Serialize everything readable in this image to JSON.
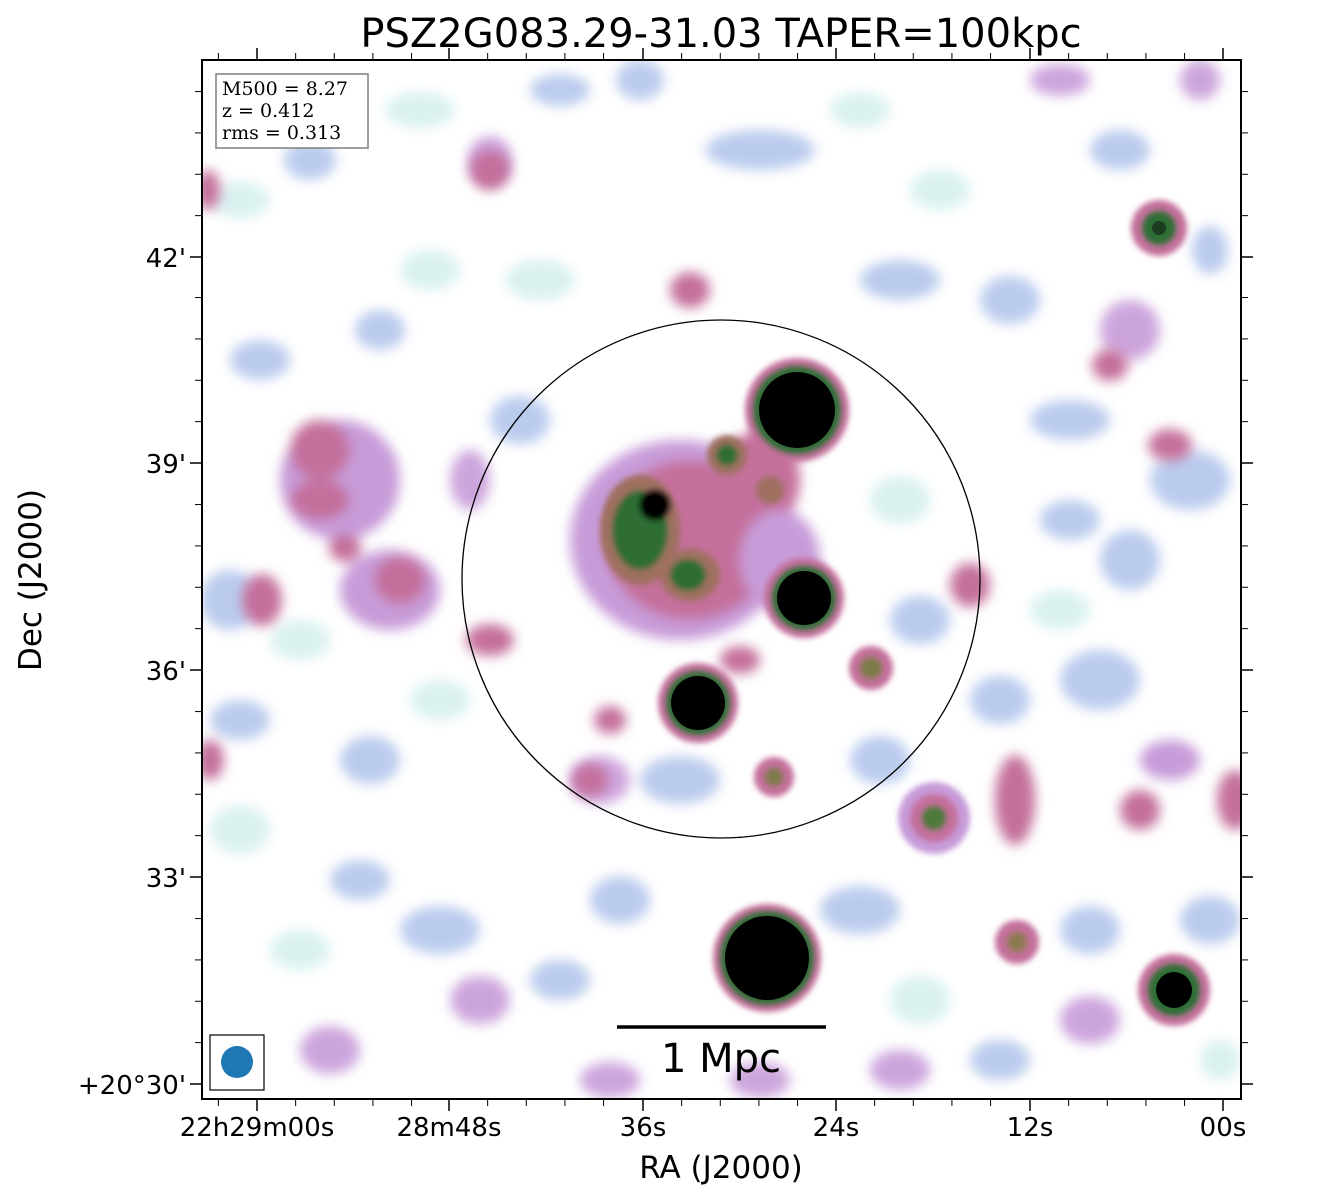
{
  "title": "PSZ2G083.29-31.03 TAPER=100kpc",
  "info_box": {
    "line1": "M500 = 8.27",
    "line2": "z = 0.412",
    "line3": "rms = 0.313"
  },
  "axes": {
    "xlabel": "RA (J2000)",
    "ylabel": "Dec (J2000)",
    "xticks": [
      "22h29m00s",
      "28m48s",
      "36s",
      "24s",
      "12s",
      "00s"
    ],
    "yticks": [
      "+20°30'",
      "33'",
      "36'",
      "39'",
      "42'"
    ]
  },
  "scalebar": {
    "label": "1 Mpc"
  },
  "colors": {
    "beam": "#1f77b4",
    "colormap": [
      "#ffffff",
      "#d6f0ef",
      "#b4c6ec",
      "#c79bd9",
      "#c46f9b",
      "#9f7060",
      "#2e6e34",
      "#000000"
    ]
  },
  "image_description_cmap": "cubehelix-like radio map"
}
